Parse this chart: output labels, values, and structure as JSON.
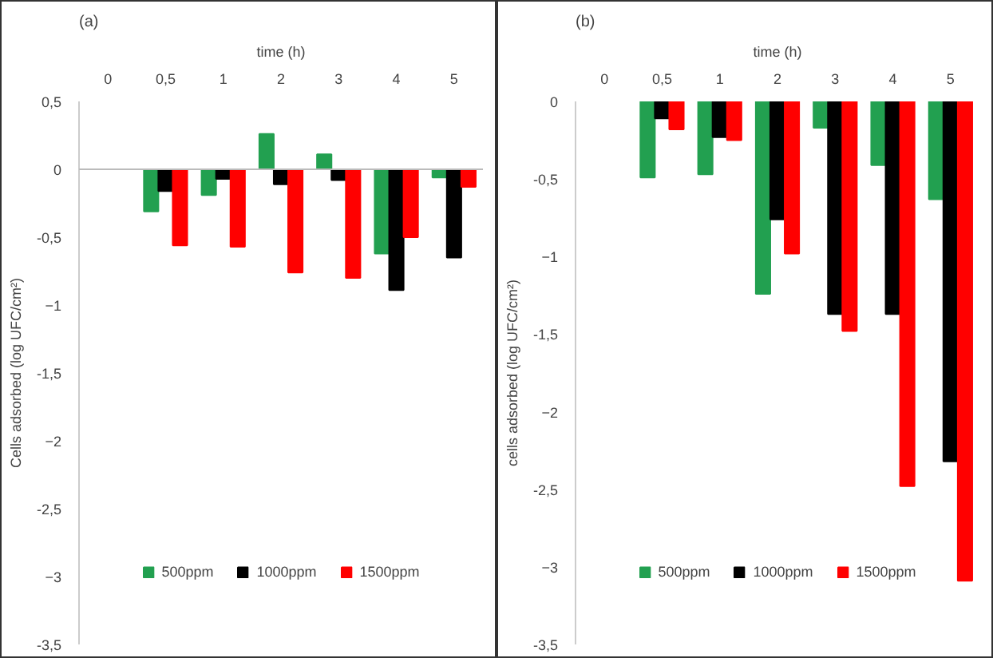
{
  "chart_data": [
    {
      "type": "bar",
      "title": "(a)",
      "xlabel": "time (h)",
      "ylabel": "Cells adsorbed (log UFC/cm²)",
      "categories": [
        "0",
        "0,5",
        "1",
        "2",
        "3",
        "4",
        "5"
      ],
      "series": [
        {
          "name": "500ppm",
          "color": "#22a050",
          "values": [
            null,
            -0.31,
            -0.19,
            0.26,
            0.11,
            -0.62,
            -0.06
          ]
        },
        {
          "name": "1000ppm",
          "color": "#000000",
          "values": [
            null,
            -0.16,
            -0.07,
            -0.11,
            -0.08,
            -0.89,
            -0.65
          ]
        },
        {
          "name": "1500ppm",
          "color": "#ff0000",
          "values": [
            null,
            -0.56,
            -0.57,
            -0.76,
            -0.8,
            -0.5,
            -0.13
          ]
        }
      ],
      "ylim": [
        -3.5,
        0.5
      ],
      "yticks": [
        {
          "value": 0.5,
          "label": "0,5"
        },
        0,
        {
          "value": -0.5,
          "label": "-0,5"
        },
        -1,
        {
          "value": -1.5,
          "label": "-1,5"
        },
        -2,
        {
          "value": -2.5,
          "label": "-2,5"
        },
        -3,
        {
          "value": -3.5,
          "label": "-3,5"
        }
      ],
      "grid": false,
      "legend": "bottom",
      "ref_lines": [
        {
          "axis": "y",
          "value": 0,
          "color": "#bbbbbb"
        }
      ]
    },
    {
      "type": "bar",
      "title": "(b)",
      "xlabel": "time (h)",
      "ylabel": "cells adsorbed (log UFC/cm²)",
      "categories": [
        "0",
        "0,5",
        "1",
        "2",
        "3",
        "4",
        "5"
      ],
      "series": [
        {
          "name": "500ppm",
          "color": "#22a050",
          "values": [
            null,
            -0.49,
            -0.47,
            -1.24,
            -0.17,
            -0.41,
            -0.63
          ]
        },
        {
          "name": "1000ppm",
          "color": "#000000",
          "values": [
            null,
            -0.11,
            -0.23,
            -0.76,
            -1.37,
            -1.37,
            -2.32
          ]
        },
        {
          "name": "1500ppm",
          "color": "#ff0000",
          "values": [
            null,
            -0.18,
            -0.25,
            -0.98,
            -1.48,
            -2.48,
            -3.09
          ]
        }
      ],
      "ylim": [
        -3.5,
        0
      ],
      "yticks": [
        0,
        {
          "value": -0.5,
          "label": "-0,5"
        },
        -1,
        {
          "value": -1.5,
          "label": "-1,5"
        },
        -2,
        {
          "value": -2.5,
          "label": "-2,5"
        },
        -3,
        {
          "value": -3.5,
          "label": "-3,5"
        }
      ],
      "grid": false,
      "legend": "bottom"
    }
  ]
}
